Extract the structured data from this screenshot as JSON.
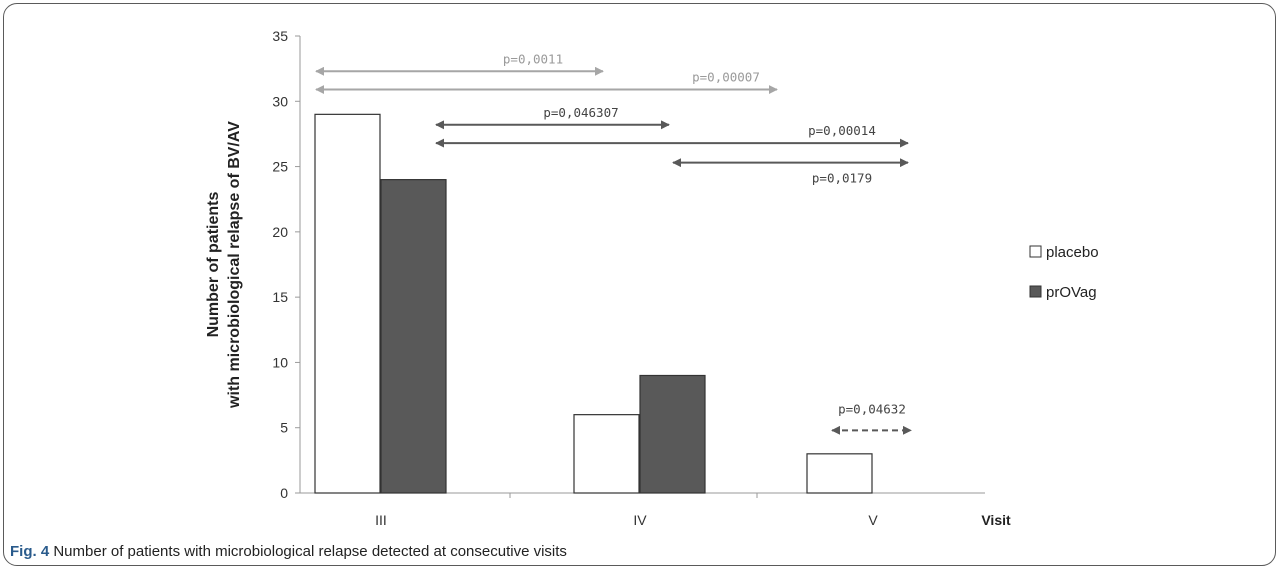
{
  "chart_data": {
    "type": "bar",
    "categories": [
      "III",
      "IV",
      "V"
    ],
    "xlabel": "Visit",
    "ylabel": [
      "Number of patients",
      "with microbiological relapse of BV/AV"
    ],
    "ylim": [
      0,
      35
    ],
    "yticks": [
      0,
      5,
      10,
      15,
      20,
      25,
      30,
      35
    ],
    "grid": false,
    "legend_position": "right",
    "series": [
      {
        "name": "placebo",
        "values": [
          29,
          6,
          3
        ],
        "fill": "#ffffff",
        "stroke": "#333333"
      },
      {
        "name": "prOVag",
        "values": [
          24,
          9,
          0
        ],
        "fill": "#595959",
        "stroke": "#333333"
      }
    ],
    "annotations": [
      {
        "label": "p=0,0011",
        "from": "III",
        "to": "IV",
        "y": 32.3,
        "color": "#a6a6a6",
        "style": "solid",
        "label_pos": "above"
      },
      {
        "label": "p=0,00007",
        "from": "III",
        "to": "V",
        "y": 30.9,
        "color": "#a6a6a6",
        "style": "solid",
        "label_pos": "above"
      },
      {
        "label": "p=0,046307",
        "from": "III",
        "to": "IV",
        "y": 28.2,
        "color": "#595959",
        "style": "solid",
        "label_pos": "above"
      },
      {
        "label": "p=0,00014",
        "from": "III",
        "to": "V",
        "y": 26.8,
        "color": "#595959",
        "style": "solid",
        "label_pos": "above"
      },
      {
        "label": "p=0,0179",
        "from": "IV",
        "to": "V",
        "y": 25.3,
        "color": "#595959",
        "style": "solid",
        "label_pos": "below"
      },
      {
        "label": "p=0,04632",
        "from": "V",
        "to": "V",
        "y": 4.8,
        "color": "#595959",
        "style": "dashed",
        "label_pos": "above"
      }
    ]
  },
  "caption": {
    "fig_label": "Fig. 4",
    "text": " Number of patients with microbiological relapse detected at consecutive visits"
  }
}
